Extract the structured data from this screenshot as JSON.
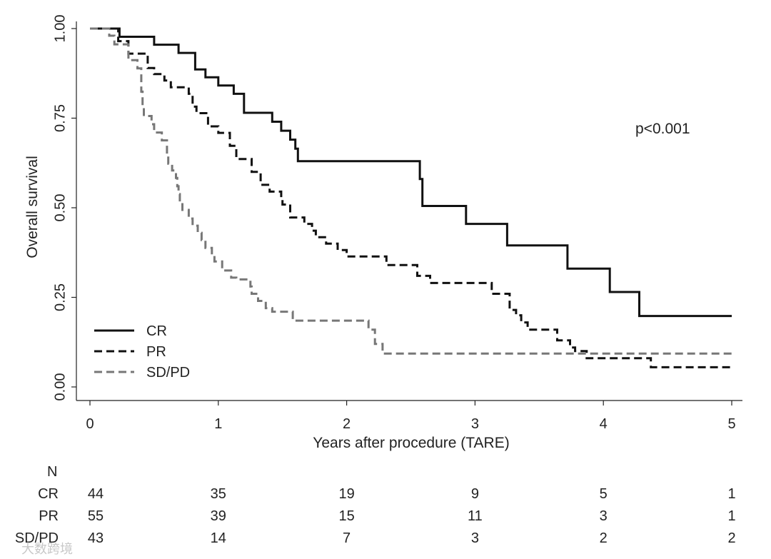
{
  "chart_data": {
    "type": "line",
    "subtype": "kaplan-meier step survival curves",
    "xlabel": "Years after procedure (TARE)",
    "ylabel": "Overall survival",
    "xlim": [
      0,
      5
    ],
    "ylim": [
      0,
      1
    ],
    "x_ticks": [
      0,
      1,
      2,
      3,
      4,
      5
    ],
    "x_tick_labels": [
      "0",
      "1",
      "2",
      "3",
      "4",
      "5"
    ],
    "y_ticks": [
      0,
      0.25,
      0.5,
      0.75,
      1
    ],
    "y_tick_labels": [
      "0.00",
      "0.25",
      "0.50",
      "0.75",
      "1.00"
    ],
    "annotation": "p<0.001",
    "legend_position": "bottom-left",
    "series": [
      {
        "name": "CR",
        "color": "#111111",
        "dash": "solid",
        "x": [
          0,
          0.23,
          0.5,
          0.69,
          0.82,
          0.9,
          1.0,
          1.12,
          1.2,
          1.42,
          1.49,
          1.56,
          1.6,
          1.62,
          2.57,
          2.59,
          2.93,
          3.25,
          3.72,
          4.05,
          4.28,
          5.0
        ],
        "y": [
          1.0,
          0.977,
          0.955,
          0.932,
          0.886,
          0.864,
          0.841,
          0.818,
          0.765,
          0.74,
          0.715,
          0.69,
          0.665,
          0.63,
          0.58,
          0.505,
          0.455,
          0.395,
          0.33,
          0.265,
          0.198,
          0.198
        ]
      },
      {
        "name": "PR",
        "color": "#111111",
        "dash": "dashed",
        "x": [
          0,
          0.22,
          0.3,
          0.45,
          0.5,
          0.58,
          0.63,
          0.77,
          0.8,
          0.83,
          0.92,
          1.0,
          1.09,
          1.14,
          1.26,
          1.33,
          1.4,
          1.49,
          1.5,
          1.56,
          1.67,
          1.73,
          1.76,
          1.82,
          1.84,
          1.93,
          2.0,
          2.26,
          2.31,
          2.55,
          2.65,
          2.75,
          2.87,
          3.0,
          3.13,
          3.27,
          3.32,
          3.36,
          3.41,
          3.44,
          3.64,
          3.74,
          3.78,
          3.87,
          4.28,
          4.37,
          5.0
        ],
        "y": [
          1.0,
          0.965,
          0.93,
          0.89,
          0.873,
          0.855,
          0.836,
          0.818,
          0.782,
          0.764,
          0.727,
          0.709,
          0.673,
          0.636,
          0.6,
          0.564,
          0.545,
          0.527,
          0.509,
          0.473,
          0.455,
          0.436,
          0.418,
          0.418,
          0.4,
          0.382,
          0.364,
          0.364,
          0.34,
          0.31,
          0.29,
          0.29,
          0.29,
          0.29,
          0.26,
          0.215,
          0.2,
          0.18,
          0.16,
          0.16,
          0.13,
          0.11,
          0.1,
          0.08,
          0.08,
          0.055,
          0.055
        ]
      },
      {
        "name": "SD/PD",
        "color": "#777777",
        "dash": "dashed",
        "x": [
          0,
          0.15,
          0.19,
          0.3,
          0.37,
          0.4,
          0.41,
          0.42,
          0.48,
          0.5,
          0.56,
          0.6,
          0.61,
          0.64,
          0.67,
          0.68,
          0.69,
          0.7,
          0.72,
          0.77,
          0.8,
          0.84,
          0.87,
          0.9,
          0.95,
          0.97,
          1.03,
          1.1,
          1.14,
          1.25,
          1.26,
          1.31,
          1.37,
          1.42,
          1.58,
          2.0,
          2.17,
          2.22,
          2.28,
          3.0,
          5.0
        ],
        "y": [
          1.0,
          0.98,
          0.956,
          0.912,
          0.889,
          0.824,
          0.78,
          0.756,
          0.733,
          0.71,
          0.688,
          0.645,
          0.623,
          0.604,
          0.583,
          0.56,
          0.538,
          0.515,
          0.494,
          0.47,
          0.45,
          0.43,
          0.41,
          0.388,
          0.37,
          0.35,
          0.325,
          0.305,
          0.3,
          0.28,
          0.26,
          0.24,
          0.22,
          0.21,
          0.185,
          0.185,
          0.16,
          0.12,
          0.093,
          0.093,
          0.093
        ]
      }
    ]
  },
  "risk_table": {
    "header": "N",
    "times": [
      0,
      1,
      2,
      3,
      4,
      5
    ],
    "rows": [
      {
        "label": "CR",
        "counts": [
          "44",
          "35",
          "19",
          "9",
          "5",
          "1"
        ]
      },
      {
        "label": "PR",
        "counts": [
          "55",
          "39",
          "15",
          "11",
          "3",
          "1"
        ]
      },
      {
        "label": "SD/PD",
        "counts": [
          "43",
          "14",
          "7",
          "3",
          "2",
          "2"
        ]
      }
    ]
  },
  "watermark": "大数跨境"
}
